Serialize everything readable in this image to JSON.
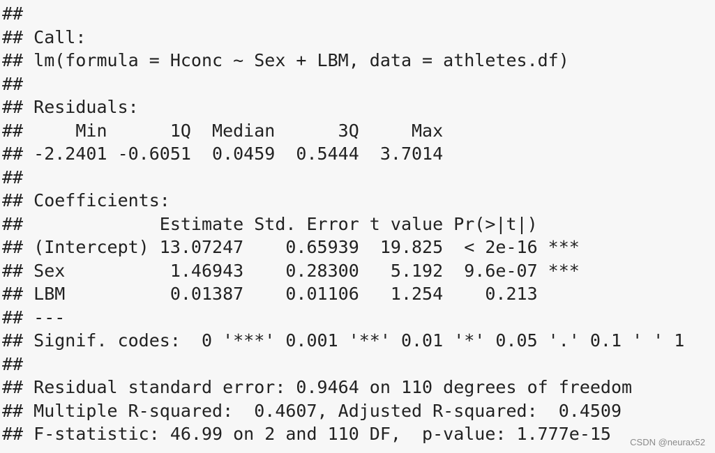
{
  "lines": [
    "##",
    "## Call:",
    "## lm(formula = Hconc ~ Sex + LBM, data = athletes.df)",
    "##",
    "## Residuals:",
    "##     Min      1Q  Median      3Q     Max",
    "## -2.2401 -0.6051  0.0459  0.5444  3.7014",
    "##",
    "## Coefficients:",
    "##             Estimate Std. Error t value Pr(>|t|)",
    "## (Intercept) 13.07247    0.65939  19.825  < 2e-16 ***",
    "## Sex          1.46943    0.28300   5.192  9.6e-07 ***",
    "## LBM          0.01387    0.01106   1.254    0.213",
    "## ---",
    "## Signif. codes:  0 '***' 0.001 '**' 0.01 '*' 0.05 '.' 0.1 ' ' 1",
    "##",
    "## Residual standard error: 0.9464 on 110 degrees of freedom",
    "## Multiple R-squared:  0.4607, Adjusted R-squared:  0.4509",
    "## F-statistic: 46.99 on 2 and 110 DF,  p-value: 1.777e-15"
  ],
  "watermark": "CSDN @neurax52"
}
